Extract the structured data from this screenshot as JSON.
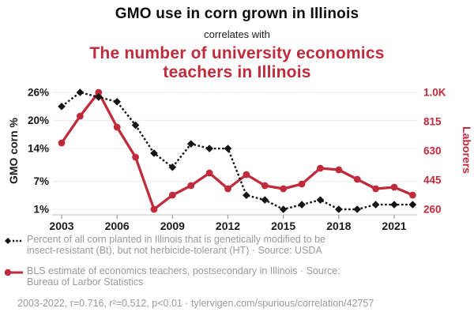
{
  "chart_data": {
    "type": "line",
    "title": "GMO use in corn grown in Illinois",
    "connector": "correlates with",
    "subtitle": "The number of university economics\nteachers in Illinois",
    "x": [
      2003,
      2004,
      2005,
      2006,
      2007,
      2008,
      2009,
      2010,
      2011,
      2012,
      2013,
      2014,
      2015,
      2016,
      2017,
      2018,
      2019,
      2020,
      2021,
      2022
    ],
    "x_tick_labels": [
      "2003",
      "2006",
      "2009",
      "2012",
      "2015",
      "2018",
      "2021"
    ],
    "x_tick_years": [
      2003,
      2006,
      2009,
      2012,
      2015,
      2018,
      2021
    ],
    "grid": "horizontal-only",
    "legend_position": "bottom-left",
    "series": [
      {
        "name": "GMO corn %",
        "axis": "left",
        "color": "#141414",
        "style": "dashed-line-diamond-markers",
        "values": [
          23,
          26,
          25,
          24,
          19,
          13,
          10,
          15,
          14,
          14,
          4,
          3,
          1,
          2,
          3,
          1,
          1,
          2,
          2,
          2
        ]
      },
      {
        "name": "Laborers",
        "axis": "right",
        "color": "#c02b3c",
        "style": "solid-line-circle-markers",
        "values": [
          680,
          850,
          1000,
          780,
          590,
          260,
          350,
          410,
          490,
          390,
          480,
          410,
          390,
          420,
          520,
          510,
          450,
          390,
          400,
          350
        ]
      }
    ],
    "axes": {
      "left": {
        "label": "GMO corn %",
        "tick_labels": [
          "26%",
          "20%",
          "14%",
          "7%",
          "1%"
        ],
        "tick_values": [
          26,
          20,
          14,
          7,
          1
        ],
        "range": [
          1,
          26
        ],
        "color": "#1a1a1a"
      },
      "right": {
        "label": "Laborers",
        "tick_labels": [
          "1.0K",
          "815",
          "630",
          "445",
          "260"
        ],
        "tick_values": [
          1000,
          815,
          630,
          445,
          260
        ],
        "range": [
          260,
          1000
        ],
        "color": "#c02b3c"
      }
    },
    "legend": [
      {
        "series": "GMO corn %",
        "text": "Percent of all corn planted in Illinois that is genetically modified to be\ninsect-resistant (Bt), but not herbicide-tolerant (HT) · Source: USDA"
      },
      {
        "series": "Laborers",
        "text": "BLS estimate of economics teachers, postsecondary in Illinois · Source:\nBureau of Larbor Statistics"
      }
    ],
    "caption": "2003-2022, r=0.716, r²=0.512, p<0.01 · tylervigen.com/spurious/correlation/42757"
  }
}
